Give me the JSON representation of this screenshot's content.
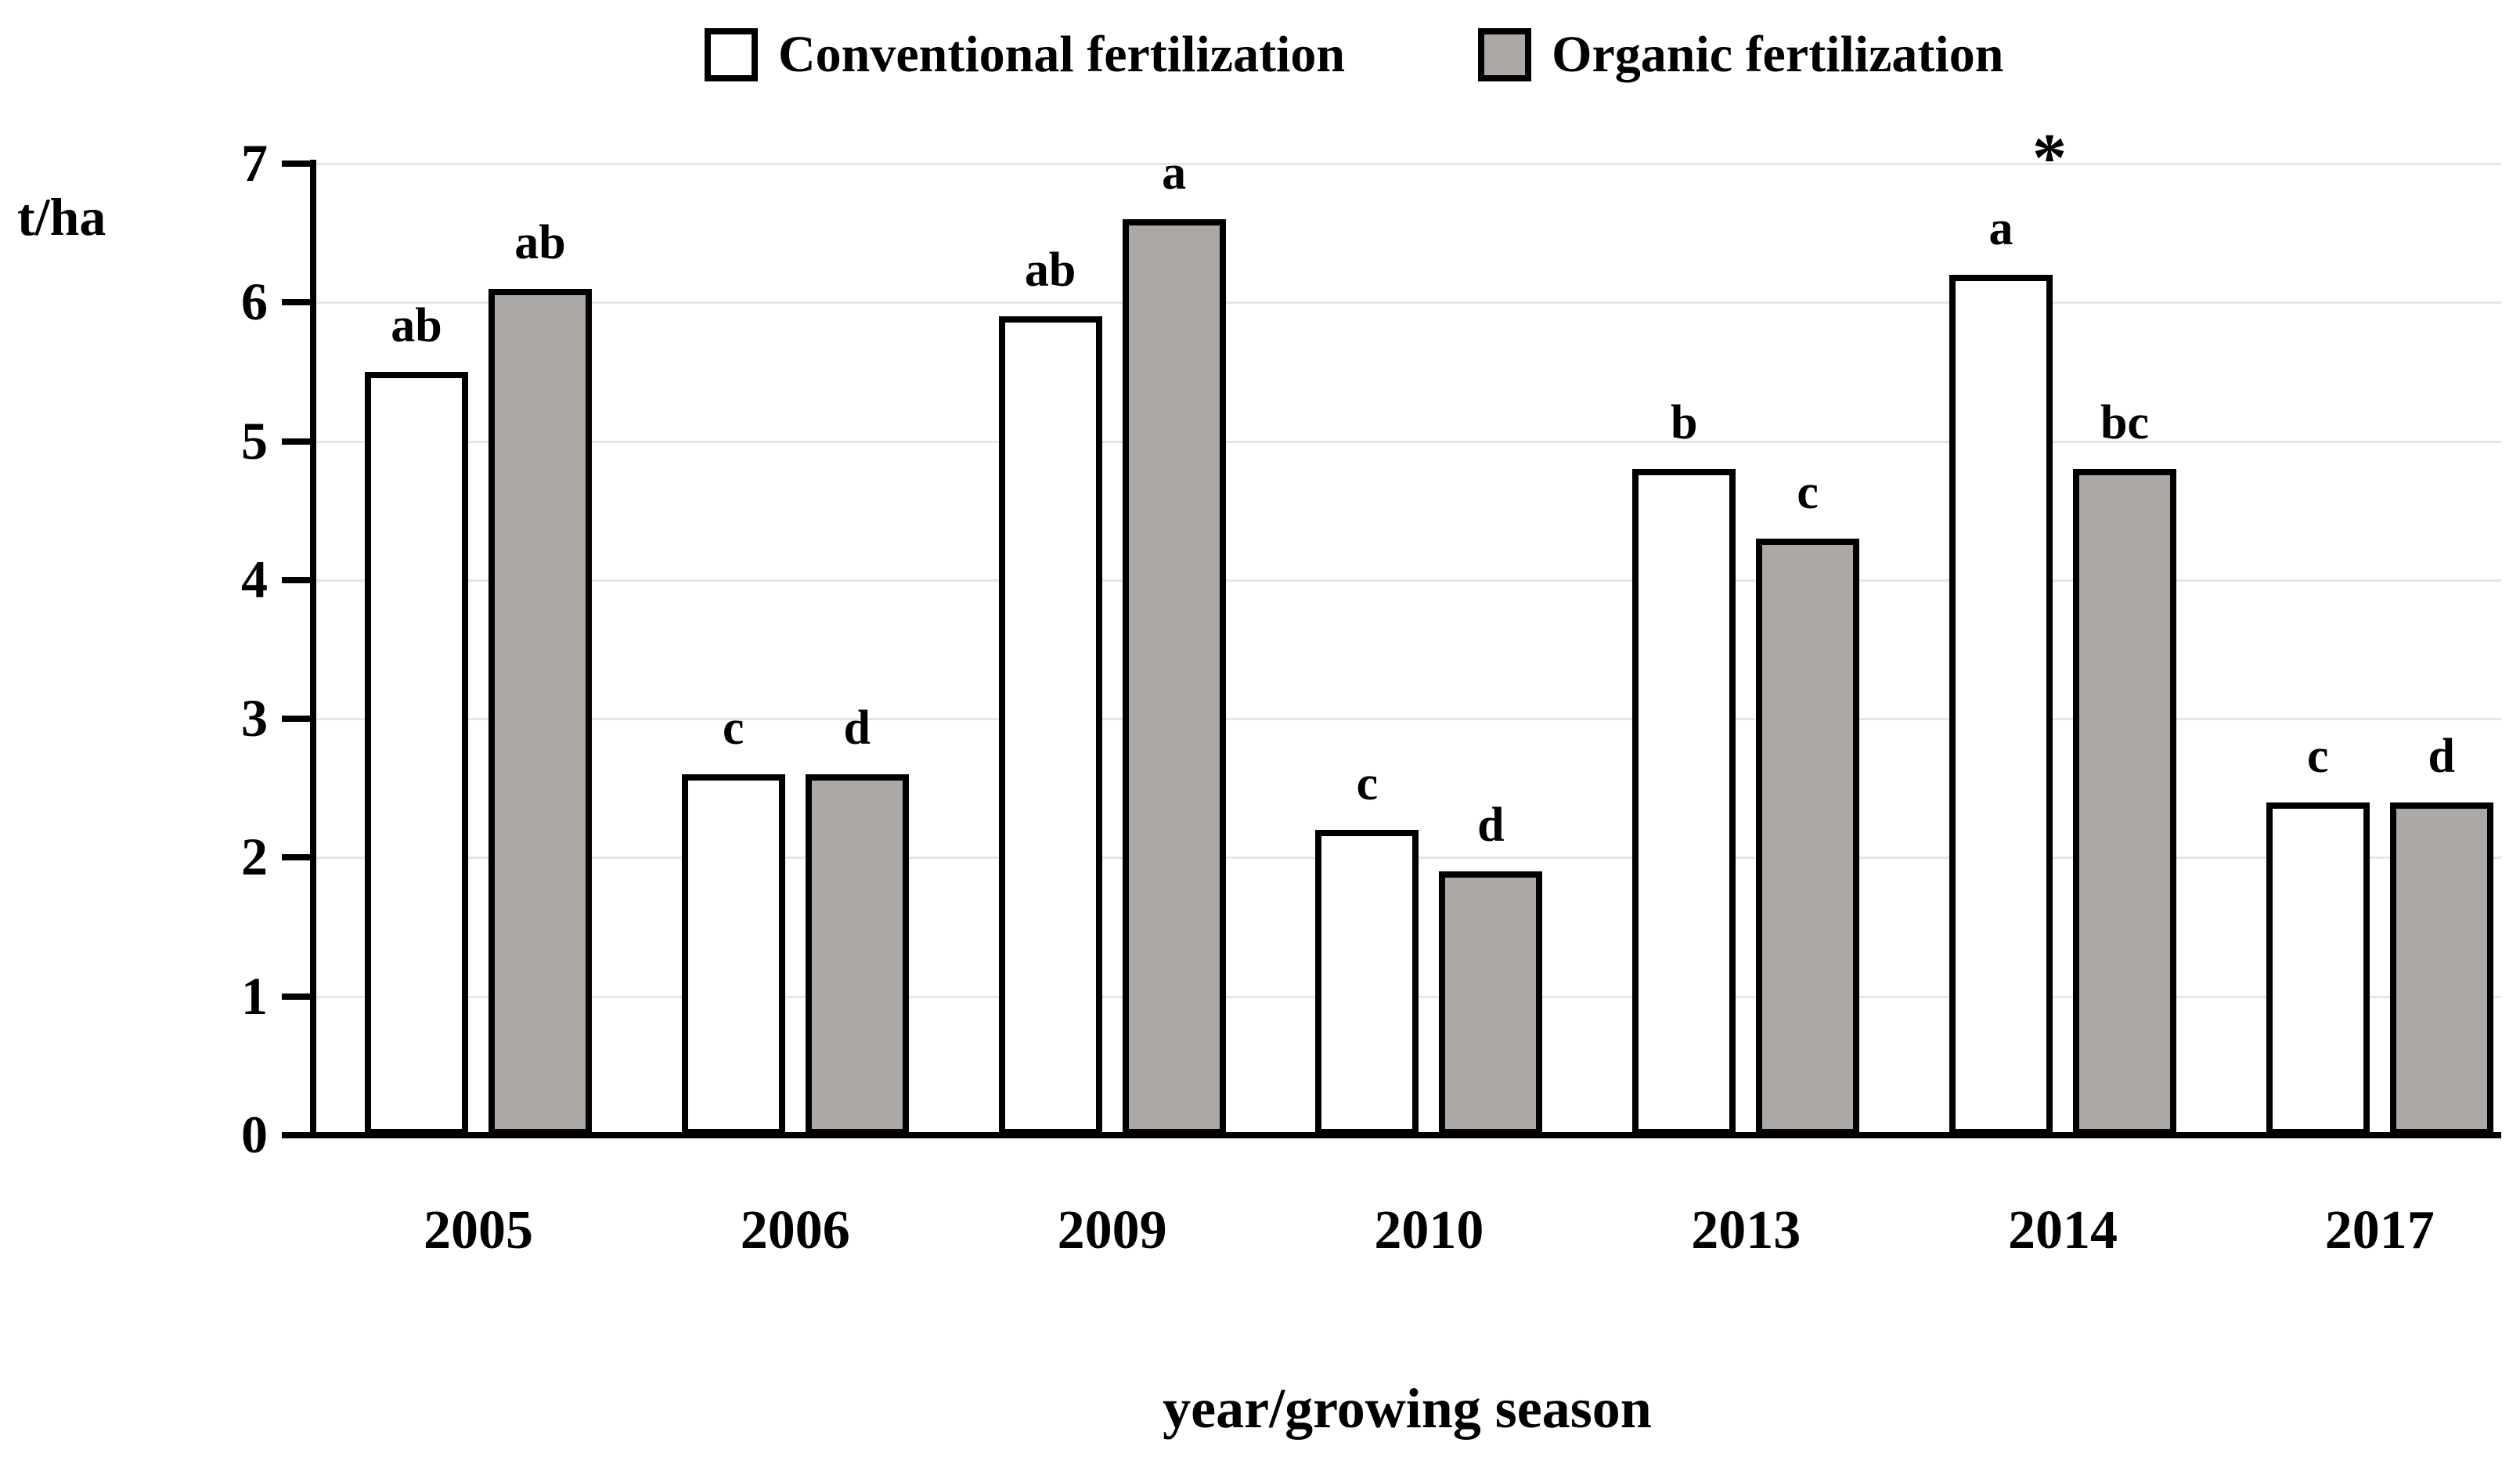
{
  "figure": {
    "y_unit_label": "t/ha",
    "x_axis_title": "year/growing season",
    "legend": [
      {
        "label": "Conventional fertilization",
        "swatch_fill": "#ffffff"
      },
      {
        "label": "Organic fertilization",
        "swatch_fill": "#aba8a5"
      }
    ]
  },
  "colors": {
    "conventional_fill": "#ffffff",
    "organic_fill": "#aba8a5",
    "bar_border": "#000000",
    "gridline": "#e6e6e6",
    "axis": "#000000",
    "text": "#000000"
  },
  "chart_data": {
    "type": "bar",
    "categories": [
      "2005",
      "2006",
      "2009",
      "2010",
      "2013",
      "2014",
      "2017"
    ],
    "series": [
      {
        "name": "Conventional fertilization",
        "fill": "#ffffff",
        "values": [
          5.5,
          2.6,
          5.9,
          2.2,
          4.8,
          6.2,
          2.4
        ],
        "labels": [
          "ab",
          "c",
          "ab",
          "c",
          "b",
          "a",
          "c"
        ]
      },
      {
        "name": "Organic fertilization",
        "fill": "#aba8a5",
        "values": [
          6.1,
          2.6,
          6.6,
          1.9,
          4.3,
          4.8,
          2.4
        ],
        "labels": [
          "ab",
          "d",
          "a",
          "d",
          "c",
          "bc",
          "d"
        ]
      }
    ],
    "annotations": [
      {
        "text": "*",
        "category": "2014",
        "series": "Conventional fertilization"
      }
    ],
    "title": "",
    "xlabel": "year/growing season",
    "ylabel": "t/ha",
    "ylim": [
      0,
      7
    ],
    "yticks": [
      0,
      1,
      2,
      3,
      4,
      5,
      6,
      7
    ],
    "grid": true,
    "legend_position": "top"
  }
}
